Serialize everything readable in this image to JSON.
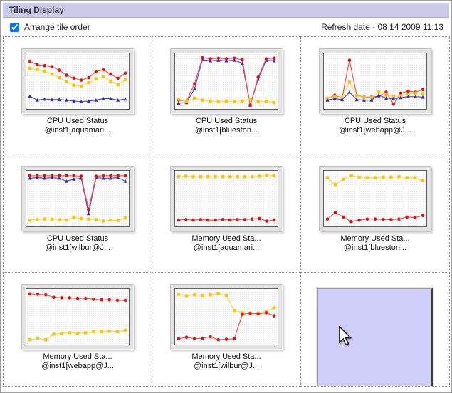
{
  "window": {
    "title": "Tiling Display"
  },
  "toolbar": {
    "checkbox_label": "Arrange tile order",
    "checkbox_checked": true,
    "refresh_label": "Refresh date - 08 14 2009 11:13"
  },
  "colors": {
    "titlebar": "#cbcbe8",
    "series_red": "#e8100c",
    "series_yellow": "#fdc500",
    "series_blue": "#2a2ad0",
    "empty_tile": "#cfcff9"
  },
  "tiles": [
    {
      "caption_line1": "CPU Used Status",
      "caption_line2": "@inst1[aquamari...",
      "chart": 0
    },
    {
      "caption_line1": "CPU Used Status",
      "caption_line2": "@inst1[blueston...",
      "chart": 1
    },
    {
      "caption_line1": "CPU Used Status",
      "caption_line2": "@inst1[webapp@J...",
      "chart": 2
    },
    {
      "caption_line1": "CPU Used Status",
      "caption_line2": "@inst1[wilbur@J...",
      "chart": 3
    },
    {
      "caption_line1": "Memory Used Sta...",
      "caption_line2": "@inst1[aquamari...",
      "chart": 4
    },
    {
      "caption_line1": "Memory Used Sta...",
      "caption_line2": "@inst1[blueston...",
      "chart": 5
    },
    {
      "caption_line1": "Memory Used Sta...",
      "caption_line2": "@inst1[webapp@J...",
      "chart": 6
    },
    {
      "caption_line1": "Memory Used Sta...",
      "caption_line2": "@inst1[wilbur@J...",
      "chart": 7
    },
    {
      "type": "empty"
    }
  ],
  "chart_data": [
    {
      "type": "line",
      "title": "CPU Used Status @inst1[aquamari...",
      "xlabel": "",
      "ylabel": "",
      "axes_visible": false,
      "grid": false,
      "legend": false,
      "ylim": [
        0,
        100
      ],
      "series": [
        {
          "name": "red",
          "marker": "circle",
          "color": "#e8100c",
          "line_color": "#f4524e",
          "values": [
            90,
            83,
            81,
            79,
            72,
            62,
            56,
            52,
            57,
            69,
            73,
            64,
            56,
            66
          ]
        },
        {
          "name": "yellow",
          "marker": "square",
          "color": "#fdc500",
          "line_color": "#fdd74e",
          "values": [
            76,
            73,
            70,
            64,
            57,
            49,
            42,
            40,
            47,
            55,
            59,
            50,
            43,
            53
          ]
        },
        {
          "name": "blue",
          "marker": "triangle",
          "color": "#2a2ad0",
          "line_color": "#4d4dda",
          "values": [
            20,
            12,
            14,
            13,
            13,
            12,
            10,
            9,
            10,
            12,
            15,
            15,
            12,
            14
          ]
        }
      ]
    },
    {
      "type": "line",
      "title": "CPU Used Status @inst1[blueston...",
      "xlabel": "",
      "ylabel": "",
      "axes_visible": false,
      "grid": false,
      "legend": false,
      "ylim": [
        0,
        100
      ],
      "series": [
        {
          "name": "blue",
          "marker": "triangle",
          "color": "#2a2ad0",
          "line_color": "#4d4dda",
          "values": [
            6,
            7,
            35,
            93,
            91,
            92,
            91,
            92,
            86,
            2,
            54,
            92,
            91
          ]
        },
        {
          "name": "red",
          "marker": "circle",
          "color": "#e8100c",
          "line_color": "#f4524e",
          "values": [
            12,
            10,
            45,
            97,
            95,
            96,
            95,
            96,
            93,
            2,
            58,
            95,
            96
          ]
        },
        {
          "name": "yellow",
          "marker": "square",
          "color": "#fdc500",
          "line_color": "#fdd74e",
          "values": [
            14,
            9,
            16,
            12,
            10,
            9,
            10,
            9,
            10,
            14,
            9,
            10,
            7
          ]
        }
      ]
    },
    {
      "type": "line",
      "title": "CPU Used Status @inst1[webapp@J...",
      "xlabel": "",
      "ylabel": "",
      "axes_visible": false,
      "grid": false,
      "legend": false,
      "ylim": [
        0,
        100
      ],
      "series": [
        {
          "name": "red",
          "marker": "circle",
          "color": "#e8100c",
          "line_color": "#f4524e",
          "values": [
            15,
            22,
            16,
            92,
            22,
            18,
            18,
            20,
            28,
            4,
            26,
            30,
            28,
            33
          ]
        },
        {
          "name": "yellow",
          "marker": "square",
          "color": "#fdc500",
          "line_color": "#fdd74e",
          "values": [
            16,
            19,
            17,
            48,
            21,
            17,
            17,
            28,
            22,
            20,
            20,
            24,
            26,
            25
          ]
        },
        {
          "name": "blue",
          "marker": "triangle",
          "color": "#2a2ad0",
          "line_color": "#4d4dda",
          "values": [
            12,
            15,
            13,
            28,
            13,
            12,
            12,
            22,
            16,
            15,
            17,
            19,
            19,
            18
          ]
        }
      ]
    },
    {
      "type": "line",
      "title": "CPU Used Status @inst1[wilbur@J...",
      "xlabel": "",
      "ylabel": "",
      "axes_visible": false,
      "grid": false,
      "legend": false,
      "ylim": [
        0,
        100
      ],
      "series": [
        {
          "name": "blue",
          "marker": "triangle",
          "color": "#2a2ad0",
          "line_color": "#4d4dda",
          "values": [
            91,
            92,
            91,
            92,
            91,
            85,
            89,
            91,
            20,
            92,
            91,
            91,
            92,
            85
          ]
        },
        {
          "name": "red",
          "marker": "circle",
          "color": "#e8100c",
          "line_color": "#f4524e",
          "values": [
            96,
            96,
            96,
            96,
            96,
            96,
            96,
            95,
            28,
            95,
            96,
            96,
            96,
            96
          ]
        },
        {
          "name": "yellow",
          "marker": "square",
          "color": "#fdc500",
          "line_color": "#fdd74e",
          "values": [
            7,
            8,
            9,
            9,
            8,
            7,
            12,
            10,
            9,
            8,
            5,
            7,
            6,
            11
          ]
        }
      ]
    },
    {
      "type": "line",
      "title": "Memory Used Sta... @inst1[aquamari...",
      "xlabel": "",
      "ylabel": "",
      "axes_visible": false,
      "grid": false,
      "legend": false,
      "ylim": [
        0,
        100
      ],
      "series": [
        {
          "name": "yellow",
          "marker": "square",
          "color": "#fdc500",
          "line_color": "#fdd74e",
          "values": [
            94,
            95,
            94,
            94,
            94,
            94,
            94,
            94,
            94,
            94,
            94,
            95,
            97,
            96
          ]
        },
        {
          "name": "red",
          "marker": "circle",
          "color": "#e8100c",
          "line_color": "#f4524e",
          "values": [
            7,
            8,
            7,
            8,
            7,
            7,
            8,
            7,
            8,
            8,
            9,
            10,
            5,
            7
          ]
        }
      ]
    },
    {
      "type": "line",
      "title": "Memory Used Sta... @inst1[blueston...",
      "xlabel": "",
      "ylabel": "",
      "axes_visible": false,
      "grid": false,
      "legend": false,
      "ylim": [
        0,
        100
      ],
      "series": [
        {
          "name": "yellow",
          "marker": "square",
          "color": "#fdc500",
          "line_color": "#fdd74e",
          "values": [
            92,
            78,
            89,
            96,
            93,
            92,
            92,
            93,
            93,
            94,
            92,
            92,
            86
          ]
        },
        {
          "name": "red",
          "marker": "circle",
          "color": "#e8100c",
          "line_color": "#f4524e",
          "values": [
            9,
            22,
            13,
            4,
            7,
            9,
            9,
            8,
            8,
            9,
            13,
            12,
            16
          ]
        }
      ]
    },
    {
      "type": "line",
      "title": "Memory Used Sta... @inst1[webapp@J...",
      "xlabel": "",
      "ylabel": "",
      "axes_visible": false,
      "grid": false,
      "legend": false,
      "ylim": [
        0,
        100
      ],
      "series": [
        {
          "name": "red",
          "marker": "circle",
          "color": "#e8100c",
          "line_color": "#f4524e",
          "values": [
            96,
            95,
            94,
            89,
            88,
            88,
            87,
            87,
            85,
            84,
            84,
            83,
            83
          ]
        },
        {
          "name": "yellow",
          "marker": "square",
          "color": "#fdc500",
          "line_color": "#fdd74e",
          "values": [
            4,
            7,
            4,
            15,
            17,
            18,
            17,
            18,
            20,
            20,
            21,
            20,
            23
          ]
        }
      ]
    },
    {
      "type": "line",
      "title": "Memory Used Sta... @inst1[wilbur@J...",
      "xlabel": "",
      "ylabel": "",
      "axes_visible": false,
      "grid": false,
      "legend": false,
      "ylim": [
        0,
        100
      ],
      "series": [
        {
          "name": "yellow",
          "marker": "square",
          "color": "#fdc500",
          "line_color": "#fdd74e",
          "values": [
            95,
            92,
            94,
            93,
            94,
            97,
            93,
            63,
            58,
            57,
            57,
            60,
            68
          ]
        },
        {
          "name": "red",
          "marker": "circle",
          "color": "#e8100c",
          "line_color": "#f4524e",
          "values": [
            6,
            9,
            6,
            7,
            10,
            4,
            5,
            6,
            55,
            57,
            56,
            58,
            52
          ]
        }
      ]
    }
  ]
}
